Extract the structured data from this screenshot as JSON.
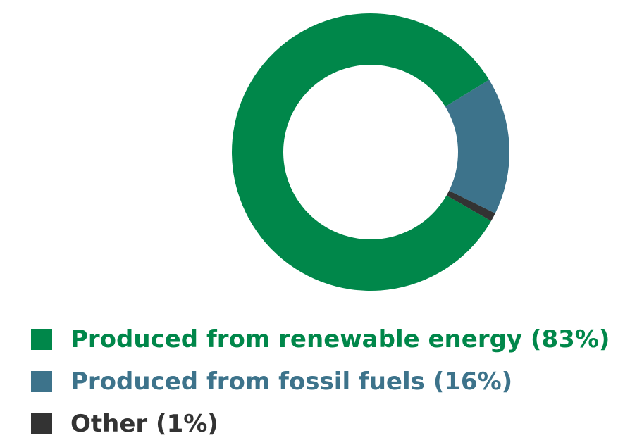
{
  "chart_data": {
    "type": "pie",
    "variant": "donut",
    "categories": [
      "Produced from renewable energy",
      "Produced from fossil fuels",
      "Other"
    ],
    "values": [
      83,
      16,
      1
    ],
    "unit": "%",
    "colors": [
      "#00874a",
      "#3d738b",
      "#333333"
    ],
    "legend": {
      "placement": "bottom-left",
      "entries": [
        {
          "label": "Produced from renewable energy (83%)",
          "color": "#00874a"
        },
        {
          "label": "Produced from fossil fuels (16%)",
          "color": "#3d738b"
        },
        {
          "label": "Other (1%)",
          "color": "#333333"
        }
      ]
    },
    "title": "",
    "xlabel": "",
    "ylabel": ""
  }
}
